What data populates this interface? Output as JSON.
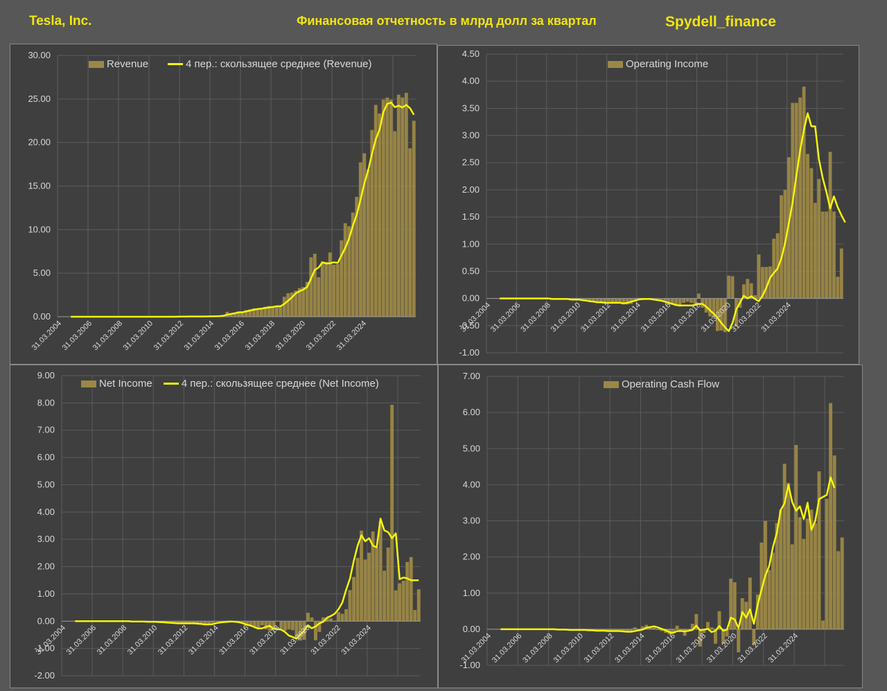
{
  "header": {
    "company": "Tesla, Inc.",
    "subtitle": "Финансовая отчетность в млрд долл за квартал",
    "source": "Spydell_finance"
  },
  "colors": {
    "bar": "#9c8846",
    "line": "#f5f50a",
    "panel": "#3f3f3f",
    "grid": "#5c5c5c",
    "text": "#d9d9d9"
  },
  "x_tick_labels": [
    "31.03.2004",
    "31.03.2006",
    "31.03.2008",
    "31.03.2010",
    "31.03.2012",
    "31.03.2014",
    "31.03.2016",
    "31.03.2018",
    "31.03.2020",
    "31.03.2022",
    "31.03.2024"
  ],
  "chart_data": [
    {
      "id": "revenue",
      "type": "bar",
      "bar_label": "Revenue",
      "line_label": "4 пер.: скользящее среднее (Revenue)",
      "ylim": [
        0,
        30
      ],
      "y_ticks": [
        "0.00",
        "5.00",
        "10.00",
        "15.00",
        "20.00",
        "25.00",
        "30.00"
      ],
      "x_start": "31.03.2004",
      "values": [
        0,
        0,
        0,
        0,
        0,
        0,
        0,
        0,
        0,
        0,
        0,
        0,
        0,
        0,
        0,
        0,
        0,
        0,
        0,
        0,
        0,
        0,
        0,
        0,
        0,
        0,
        0,
        0,
        0,
        0,
        0,
        0,
        0.02,
        0.03,
        0.03,
        0.03,
        0.03,
        0.03,
        0.04,
        0.05,
        0.05,
        0.06,
        0.11,
        0.2,
        0.56,
        0.41,
        0.43,
        0.62,
        0.62,
        0.77,
        0.85,
        0.96,
        0.94,
        0.96,
        1.15,
        1.24,
        1.15,
        1.27,
        1.15,
        2.29,
        2.7,
        2.79,
        2.99,
        3.29,
        3.41,
        4.0,
        6.82,
        7.23,
        4.54,
        6.35,
        6.3,
        7.38,
        5.98,
        6.04,
        8.77,
        10.74,
        10.39,
        11.96,
        13.76,
        17.72,
        18.76,
        16.93,
        21.45,
        24.32,
        23.33,
        24.93,
        25.17,
        24.93,
        21.3,
        25.5,
        25.18,
        25.71,
        19.34,
        22.5
      ],
      "ma": [
        0,
        0,
        0,
        0,
        0,
        0,
        0,
        0,
        0,
        0,
        0,
        0,
        0,
        0,
        0,
        0,
        0,
        0,
        0,
        0,
        0,
        0,
        0,
        0,
        0,
        0,
        0,
        0,
        0,
        0,
        0,
        0.01,
        0.02,
        0.02,
        0.03,
        0.03,
        0.03,
        0.03,
        0.03,
        0.04,
        0.05,
        0.05,
        0.07,
        0.11,
        0.23,
        0.32,
        0.4,
        0.5,
        0.52,
        0.61,
        0.71,
        0.8,
        0.88,
        0.93,
        1.0,
        1.07,
        1.12,
        1.2,
        1.2,
        1.47,
        1.85,
        2.23,
        2.69,
        2.94,
        3.12,
        3.42,
        4.38,
        5.37,
        5.65,
        6.24,
        6.11,
        6.14,
        6.25,
        6.18,
        7.04,
        7.9,
        8.99,
        10.47,
        11.71,
        13.46,
        15.3,
        16.79,
        18.72,
        20.37,
        21.51,
        23.51,
        24.44,
        24.6,
        24.06,
        24.23,
        24.02,
        24.32,
        23.94,
        23.19
      ]
    },
    {
      "id": "operating-income",
      "type": "bar",
      "bar_label": "Operating Income",
      "line_label": "",
      "ylim": [
        -1,
        4.5
      ],
      "y_ticks": [
        "-1.00",
        "-0.50",
        "0.00",
        "0.50",
        "1.00",
        "1.50",
        "2.00",
        "2.50",
        "3.00",
        "3.50",
        "4.00",
        "4.50"
      ],
      "x_start": "31.03.2004",
      "values": [
        0,
        0,
        0,
        0,
        0,
        0,
        0,
        0,
        0,
        0,
        0,
        0,
        0,
        0,
        0,
        0,
        0,
        -0.01,
        -0.01,
        -0.01,
        -0.01,
        -0.02,
        -0.02,
        -0.02,
        -0.03,
        -0.04,
        -0.05,
        -0.06,
        -0.07,
        -0.08,
        -0.08,
        -0.07,
        -0.06,
        -0.07,
        -0.08,
        -0.09,
        -0.11,
        -0.11,
        -0.1,
        -0.06,
        0.01,
        -0.03,
        -0.02,
        0.01,
        0.0,
        -0.02,
        -0.03,
        -0.05,
        -0.1,
        -0.11,
        -0.14,
        -0.15,
        -0.08,
        -0.06,
        -0.08,
        -0.1,
        0.09,
        -0.17,
        -0.26,
        -0.33,
        -0.34,
        -0.6,
        -0.59,
        -0.62,
        0.42,
        0.41,
        -0.52,
        -0.17,
        0.26,
        0.36,
        0.28,
        0.06,
        0.81,
        0.58,
        0.58,
        0.59,
        1.1,
        1.2,
        1.9,
        2.0,
        2.6,
        3.6,
        3.6,
        3.7,
        3.9,
        2.66,
        2.4,
        1.76,
        2.2,
        1.6,
        1.6,
        2.7,
        1.6,
        0.4,
        0.92
      ],
      "ma": [
        0,
        0,
        0,
        0,
        0,
        0,
        0,
        0,
        0,
        0,
        0,
        0,
        0,
        0,
        0,
        0,
        0,
        0,
        0,
        0,
        0,
        0,
        0,
        0,
        0,
        0,
        0,
        0,
        0,
        0,
        0,
        0,
        0,
        0,
        0,
        0,
        0,
        0,
        0,
        0,
        0,
        0,
        0,
        0,
        0,
        0,
        0,
        0,
        0,
        0,
        0,
        0,
        0,
        0,
        0,
        0,
        0,
        0,
        0,
        0,
        0,
        0,
        0,
        0,
        0,
        0,
        0,
        0,
        0,
        0,
        0,
        0,
        0,
        0,
        0,
        0,
        0,
        0,
        0,
        0,
        0,
        0,
        0,
        0,
        0,
        0,
        0,
        0,
        0,
        0,
        0,
        0,
        0,
        0,
        0
      ],
      "ma_override": [
        0,
        0,
        0,
        0,
        0,
        0,
        0,
        0,
        0,
        0,
        0,
        0,
        0,
        0,
        0,
        0,
        0,
        -0.01,
        -0.01,
        -0.01,
        -0.01,
        -0.01,
        -0.02,
        -0.02,
        -0.02,
        -0.03,
        -0.04,
        -0.05,
        -0.06,
        -0.07,
        -0.07,
        -0.08,
        -0.08,
        -0.08,
        -0.08,
        -0.08,
        -0.09,
        -0.08,
        -0.06,
        -0.04,
        -0.02,
        -0.01,
        -0.01,
        -0.01,
        -0.02,
        -0.03,
        -0.04,
        -0.06,
        -0.08,
        -0.1,
        -0.12,
        -0.13,
        -0.13,
        -0.13,
        -0.13,
        -0.12,
        -0.1,
        -0.1,
        -0.15,
        -0.22,
        -0.28,
        -0.35,
        -0.45,
        -0.53,
        -0.6,
        -0.45,
        -0.2,
        -0.08,
        0.05,
        0.0,
        0.04,
        -0.01,
        -0.05,
        0.05,
        0.2,
        0.38,
        0.47,
        0.55,
        0.74,
        1.02,
        1.39,
        1.77,
        2.26,
        2.73,
        3.1,
        3.41,
        3.17,
        3.17,
        2.56,
        2.22,
        1.96,
        1.66,
        1.88,
        1.68,
        1.53,
        1.4
      ]
    },
    {
      "id": "net-income",
      "type": "bar",
      "bar_label": "Net Income",
      "line_label": "4 пер.: скользящее среднее (Net Income)",
      "ylim": [
        -2,
        9
      ],
      "y_ticks": [
        "-2.00",
        "-1.00",
        "0.00",
        "1.00",
        "2.00",
        "3.00",
        "4.00",
        "5.00",
        "6.00",
        "7.00",
        "8.00",
        "9.00"
      ],
      "x_start": "31.03.2004",
      "values": [
        0,
        0,
        0,
        0,
        0,
        0,
        0,
        0,
        0,
        0,
        0,
        0,
        0,
        0,
        0,
        0,
        0,
        -0.01,
        -0.01,
        -0.01,
        -0.01,
        -0.02,
        -0.02,
        -0.02,
        -0.03,
        -0.04,
        -0.05,
        -0.06,
        -0.07,
        -0.08,
        -0.09,
        -0.08,
        -0.07,
        -0.08,
        -0.09,
        -0.1,
        -0.12,
        -0.13,
        -0.11,
        -0.06,
        0.01,
        -0.04,
        -0.03,
        0.02,
        0.0,
        -0.03,
        -0.05,
        -0.08,
        -0.16,
        -0.18,
        -0.22,
        -0.25,
        -0.15,
        -0.3,
        -0.35,
        -0.3,
        0.02,
        -0.28,
        -0.35,
        -0.3,
        -0.33,
        -0.62,
        -0.71,
        -0.68,
        0.31,
        0.14,
        -0.7,
        -0.39,
        0.14,
        0.11,
        0.1,
        0.02,
        0.33,
        0.27,
        0.44,
        1.14,
        1.62,
        2.32,
        3.32,
        2.26,
        2.51,
        3.29,
        2.7,
        3.66,
        1.85,
        2.7,
        7.93,
        1.13,
        1.39,
        1.48,
        2.17,
        2.35,
        0.41,
        1.17
      ],
      "ma": [
        0,
        0,
        0,
        0,
        0,
        0,
        0,
        0,
        0,
        0,
        0,
        0,
        0,
        0,
        0,
        0,
        0,
        0,
        -0.01,
        -0.01,
        -0.01,
        -0.01,
        -0.02,
        -0.02,
        -0.02,
        -0.03,
        -0.04,
        -0.05,
        -0.06,
        -0.07,
        -0.08,
        -0.08,
        -0.08,
        -0.08,
        -0.08,
        -0.09,
        -0.1,
        -0.12,
        -0.12,
        -0.11,
        -0.07,
        -0.05,
        -0.03,
        -0.02,
        -0.01,
        -0.02,
        -0.04,
        -0.08,
        -0.13,
        -0.16,
        -0.22,
        -0.27,
        -0.26,
        -0.21,
        -0.17,
        -0.28,
        -0.29,
        -0.31,
        -0.4,
        -0.53,
        -0.58,
        -0.64,
        -0.49,
        -0.35,
        -0.15,
        -0.26,
        -0.19,
        -0.08,
        -0.02,
        0.13,
        0.19,
        0.27,
        0.44,
        0.68,
        1.15,
        1.57,
        2.22,
        2.77,
        3.15,
        2.93,
        3.04,
        2.77,
        2.71,
        3.76,
        3.33,
        3.26,
        3.04,
        3.22,
        1.54,
        1.6,
        1.57,
        1.5,
        1.5,
        1.5
      ],
      "ma_shift": 0
    },
    {
      "id": "operating-cash-flow",
      "type": "bar",
      "bar_label": "Operating Cash Flow",
      "line_label": "",
      "ylim": [
        -1,
        7
      ],
      "y_ticks": [
        "-1.00",
        "0.00",
        "1.00",
        "2.00",
        "3.00",
        "4.00",
        "5.00",
        "6.00",
        "7.00"
      ],
      "x_start": "31.03.2004",
      "values": [
        0,
        0,
        0,
        0,
        0,
        0,
        0,
        0,
        0,
        0,
        0,
        0,
        0,
        0,
        0,
        0,
        0,
        -0.01,
        -0.01,
        -0.01,
        -0.02,
        -0.02,
        -0.02,
        -0.02,
        -0.03,
        -0.03,
        -0.04,
        -0.05,
        -0.04,
        -0.03,
        -0.05,
        -0.06,
        -0.04,
        -0.05,
        -0.06,
        -0.08,
        -0.09,
        -0.06,
        0.05,
        -0.02,
        0.08,
        0.12,
        0.06,
        0.05,
        -0.02,
        -0.05,
        -0.1,
        -0.14,
        -0.1,
        0.1,
        -0.05,
        -0.18,
        -0.01,
        0.15,
        0.42,
        -0.48,
        -0.1,
        0.2,
        0.05,
        -0.4,
        0.5,
        -0.4,
        -0.2,
        1.4,
        1.3,
        -0.64,
        0.86,
        0.76,
        1.43,
        -0.44,
        0.96,
        2.4,
        3.0,
        1.64,
        2.12,
        2.94,
        3.3,
        4.58,
        4.05,
        2.35,
        5.1,
        3.1,
        2.5,
        3.06,
        3.31,
        2.93,
        4.37,
        0.24,
        3.61,
        6.26,
        4.81,
        2.16,
        2.54
      ],
      "ma": [
        0,
        0,
        0,
        0,
        0,
        0,
        0,
        0,
        0,
        0,
        0,
        0,
        0,
        0,
        0,
        0,
        0,
        0,
        -0.01,
        -0.01,
        -0.01,
        -0.02,
        -0.02,
        -0.02,
        -0.02,
        -0.02,
        -0.03,
        -0.03,
        -0.04,
        -0.04,
        -0.04,
        -0.05,
        -0.05,
        -0.05,
        -0.05,
        -0.06,
        -0.07,
        -0.07,
        -0.05,
        -0.03,
        -0.01,
        0.04,
        0.06,
        0.08,
        0.05,
        0.01,
        -0.03,
        -0.08,
        -0.1,
        -0.05,
        -0.05,
        -0.06,
        -0.04,
        -0.02,
        0.1,
        -0.03,
        -0.01,
        0.01,
        -0.08,
        -0.04,
        0.09,
        -0.04,
        -0.01,
        0.32,
        0.27,
        0.03,
        0.48,
        0.32,
        0.55,
        0.15,
        0.68,
        1.09,
        1.49,
        1.75,
        2.29,
        2.67,
        3.3,
        3.49,
        4.0,
        3.52,
        3.28,
        3.4,
        3.05,
        3.5,
        2.75,
        3.0,
        3.6,
        3.66,
        3.72,
        4.2,
        3.91
      ],
      "ma_shift": 0
    }
  ]
}
